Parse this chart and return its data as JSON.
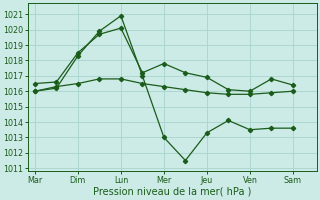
{
  "background_color": "#cceae6",
  "grid_color": "#aad4cf",
  "line_color": "#1a5c1a",
  "xlabel": "Pression niveau de la mer( hPa )",
  "xtick_labels": [
    "Mar",
    "Dim",
    "Lun",
    "Mer",
    "Jeu",
    "Ven",
    "Sam"
  ],
  "xtick_positions": [
    0,
    1,
    2,
    3,
    4,
    5,
    6
  ],
  "ylim": [
    1010.8,
    1021.7
  ],
  "yticks": [
    1011,
    1012,
    1013,
    1014,
    1015,
    1016,
    1017,
    1018,
    1019,
    1020,
    1021
  ],
  "xlim": [
    -0.15,
    6.55
  ],
  "series": [
    {
      "x": [
        0.0,
        0.5,
        1.0,
        1.5,
        2.0,
        2.5,
        3.0,
        3.5,
        4.0,
        4.5,
        5.0,
        5.5,
        6.0
      ],
      "y": [
        1016.5,
        1016.6,
        1018.5,
        1019.7,
        1020.1,
        1017.2,
        1017.8,
        1017.2,
        1016.9,
        1016.1,
        1016.0,
        1016.8,
        1016.4
      ]
    },
    {
      "x": [
        0.0,
        0.5,
        1.0,
        1.5,
        2.0,
        2.5,
        3.0,
        3.5,
        4.0,
        4.5,
        5.0,
        5.5,
        6.0
      ],
      "y": [
        1016.0,
        1016.3,
        1016.5,
        1016.8,
        1016.8,
        1016.5,
        1016.3,
        1016.1,
        1015.9,
        1015.8,
        1015.8,
        1015.9,
        1016.0
      ]
    },
    {
      "x": [
        0.0,
        0.5,
        1.0,
        1.5,
        2.0,
        2.5,
        3.0,
        3.5,
        4.0,
        4.5,
        5.0,
        5.5,
        6.0
      ],
      "y": [
        1016.0,
        1016.2,
        1018.3,
        1019.9,
        1020.9,
        1017.0,
        1013.0,
        1011.5,
        1013.3,
        1014.1,
        1013.5,
        1013.6,
        1013.6
      ]
    }
  ],
  "marker": "D",
  "markersize": 2.2,
  "linewidth": 0.9,
  "tick_fontsize": 5.8,
  "xlabel_fontsize": 7.0
}
